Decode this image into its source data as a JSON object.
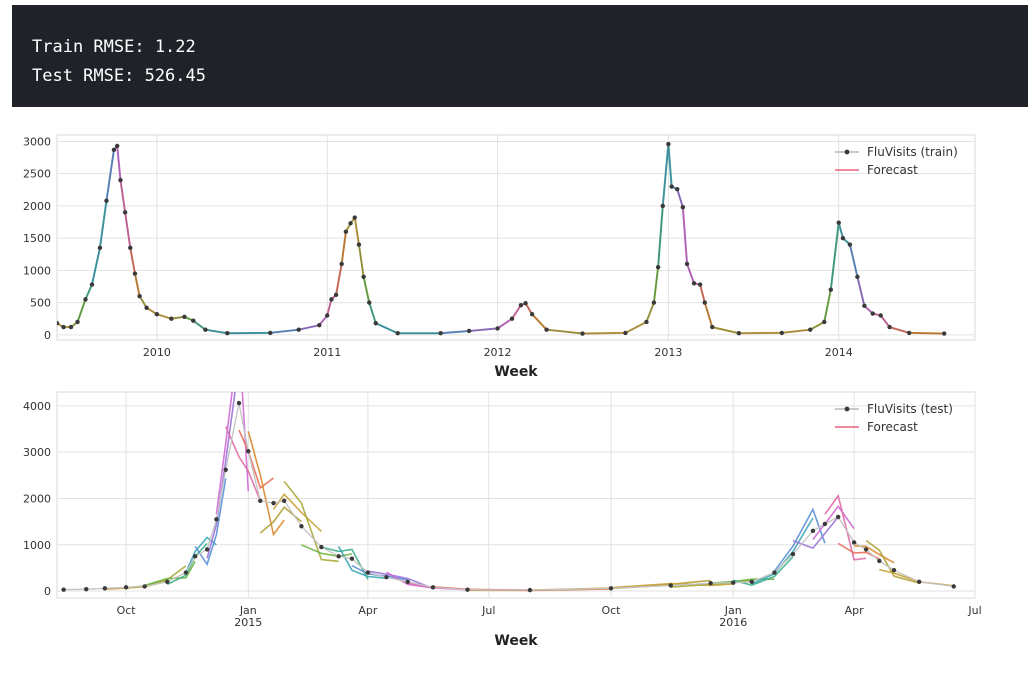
{
  "output": {
    "lines": [
      "Train RMSE: 1.22",
      "Test RMSE: 526.45"
    ]
  },
  "chart_data": [
    {
      "type": "line",
      "xlabel": "Week",
      "ylabel": "",
      "x_range": [
        "2009-06-01",
        "2014-10-20"
      ],
      "ylim": [
        -80,
        3100
      ],
      "yticks": [
        0,
        500,
        1000,
        1500,
        2000,
        2500,
        3000
      ],
      "xticks": [
        {
          "date": "2010-01-01",
          "label": "2010"
        },
        {
          "date": "2011-01-01",
          "label": "2011"
        },
        {
          "date": "2012-01-01",
          "label": "2012"
        },
        {
          "date": "2013-01-01",
          "label": "2013"
        },
        {
          "date": "2014-01-01",
          "label": "2014"
        }
      ],
      "grid": true,
      "legend": {
        "position": "top-right",
        "entries": [
          "FluVisits (train)",
          "Forecast"
        ]
      },
      "series": [
        {
          "name": "FluVisits (train)",
          "points": [
            [
              "2009-06-01",
              180
            ],
            [
              "2009-06-15",
              120
            ],
            [
              "2009-07-01",
              120
            ],
            [
              "2009-07-15",
              200
            ],
            [
              "2009-08-01",
              550
            ],
            [
              "2009-08-15",
              780
            ],
            [
              "2009-09-01",
              1350
            ],
            [
              "2009-09-15",
              2080
            ],
            [
              "2009-10-01",
              2870
            ],
            [
              "2009-10-08",
              2930
            ],
            [
              "2009-10-15",
              2400
            ],
            [
              "2009-10-25",
              1900
            ],
            [
              "2009-11-05",
              1350
            ],
            [
              "2009-11-15",
              950
            ],
            [
              "2009-11-25",
              600
            ],
            [
              "2009-12-10",
              420
            ],
            [
              "2010-01-01",
              320
            ],
            [
              "2010-02-01",
              250
            ],
            [
              "2010-03-01",
              280
            ],
            [
              "2010-03-20",
              220
            ],
            [
              "2010-04-15",
              80
            ],
            [
              "2010-06-01",
              25
            ],
            [
              "2010-09-01",
              30
            ],
            [
              "2010-11-01",
              80
            ],
            [
              "2010-12-15",
              150
            ],
            [
              "2011-01-01",
              300
            ],
            [
              "2011-01-10",
              550
            ],
            [
              "2011-01-20",
              620
            ],
            [
              "2011-02-01",
              1100
            ],
            [
              "2011-02-10",
              1600
            ],
            [
              "2011-02-20",
              1730
            ],
            [
              "2011-03-01",
              1820
            ],
            [
              "2011-03-10",
              1400
            ],
            [
              "2011-03-20",
              900
            ],
            [
              "2011-04-01",
              500
            ],
            [
              "2011-04-15",
              180
            ],
            [
              "2011-06-01",
              25
            ],
            [
              "2011-09-01",
              25
            ],
            [
              "2011-11-01",
              60
            ],
            [
              "2012-01-01",
              100
            ],
            [
              "2012-02-01",
              250
            ],
            [
              "2012-02-20",
              460
            ],
            [
              "2012-03-01",
              490
            ],
            [
              "2012-03-15",
              320
            ],
            [
              "2012-04-15",
              80
            ],
            [
              "2012-07-01",
              20
            ],
            [
              "2012-10-01",
              30
            ],
            [
              "2012-11-15",
              200
            ],
            [
              "2012-12-01",
              500
            ],
            [
              "2012-12-10",
              1050
            ],
            [
              "2012-12-20",
              2000
            ],
            [
              "2013-01-01",
              2960
            ],
            [
              "2013-01-08",
              2300
            ],
            [
              "2013-01-20",
              2260
            ],
            [
              "2013-02-01",
              1980
            ],
            [
              "2013-02-10",
              1100
            ],
            [
              "2013-02-25",
              800
            ],
            [
              "2013-03-10",
              780
            ],
            [
              "2013-03-20",
              500
            ],
            [
              "2013-04-05",
              120
            ],
            [
              "2013-06-01",
              25
            ],
            [
              "2013-09-01",
              30
            ],
            [
              "2013-11-01",
              80
            ],
            [
              "2013-12-01",
              200
            ],
            [
              "2013-12-15",
              700
            ],
            [
              "2014-01-01",
              1740
            ],
            [
              "2014-01-10",
              1500
            ],
            [
              "2014-01-25",
              1400
            ],
            [
              "2014-02-10",
              900
            ],
            [
              "2014-02-25",
              450
            ],
            [
              "2014-03-15",
              330
            ],
            [
              "2014-04-01",
              300
            ],
            [
              "2014-04-20",
              120
            ],
            [
              "2014-06-01",
              30
            ],
            [
              "2014-08-15",
              20
            ]
          ]
        }
      ]
    },
    {
      "type": "line",
      "xlabel": "Week",
      "ylabel": "",
      "x_range": [
        "2014-08-10",
        "2016-07-01"
      ],
      "ylim": [
        -150,
        4300
      ],
      "yticks": [
        0,
        1000,
        2000,
        3000,
        4000
      ],
      "xticks": [
        {
          "date": "2014-10-01",
          "label": "Oct"
        },
        {
          "date": "2015-01-01",
          "label": "Jan",
          "sub": "2015"
        },
        {
          "date": "2015-04-01",
          "label": "Apr"
        },
        {
          "date": "2015-07-01",
          "label": "Jul"
        },
        {
          "date": "2015-10-01",
          "label": "Oct"
        },
        {
          "date": "2016-01-01",
          "label": "Jan",
          "sub": "2016"
        },
        {
          "date": "2016-04-01",
          "label": "Apr"
        },
        {
          "date": "2016-07-01",
          "label": "Jul"
        }
      ],
      "grid": true,
      "legend": {
        "position": "top-right",
        "entries": [
          "FluVisits (test)",
          "Forecast"
        ]
      },
      "series": [
        {
          "name": "FluVisits (test)",
          "points": [
            [
              "2014-08-15",
              30
            ],
            [
              "2014-09-01",
              40
            ],
            [
              "2014-09-15",
              60
            ],
            [
              "2014-10-01",
              80
            ],
            [
              "2014-10-15",
              100
            ],
            [
              "2014-11-01",
              200
            ],
            [
              "2014-11-15",
              400
            ],
            [
              "2014-11-22",
              750
            ],
            [
              "2014-12-01",
              900
            ],
            [
              "2014-12-08",
              1550
            ],
            [
              "2014-12-15",
              2620
            ],
            [
              "2014-12-25",
              4060
            ],
            [
              "2015-01-01",
              3020
            ],
            [
              "2015-01-10",
              1950
            ],
            [
              "2015-01-20",
              1900
            ],
            [
              "2015-01-28",
              1950
            ],
            [
              "2015-02-10",
              1400
            ],
            [
              "2015-02-25",
              950
            ],
            [
              "2015-03-10",
              750
            ],
            [
              "2015-03-20",
              700
            ],
            [
              "2015-04-01",
              400
            ],
            [
              "2015-04-15",
              300
            ],
            [
              "2015-05-01",
              200
            ],
            [
              "2015-05-20",
              80
            ],
            [
              "2015-06-15",
              30
            ],
            [
              "2015-08-01",
              20
            ],
            [
              "2015-10-01",
              60
            ],
            [
              "2015-11-15",
              120
            ],
            [
              "2015-12-15",
              170
            ],
            [
              "2016-01-01",
              180
            ],
            [
              "2016-01-15",
              200
            ],
            [
              "2016-02-01",
              400
            ],
            [
              "2016-02-15",
              800
            ],
            [
              "2016-03-01",
              1300
            ],
            [
              "2016-03-10",
              1450
            ],
            [
              "2016-03-20",
              1600
            ],
            [
              "2016-04-01",
              1050
            ],
            [
              "2016-04-10",
              900
            ],
            [
              "2016-04-20",
              650
            ],
            [
              "2016-05-01",
              450
            ],
            [
              "2016-05-20",
              200
            ],
            [
              "2016-06-15",
              100
            ]
          ]
        }
      ]
    }
  ]
}
